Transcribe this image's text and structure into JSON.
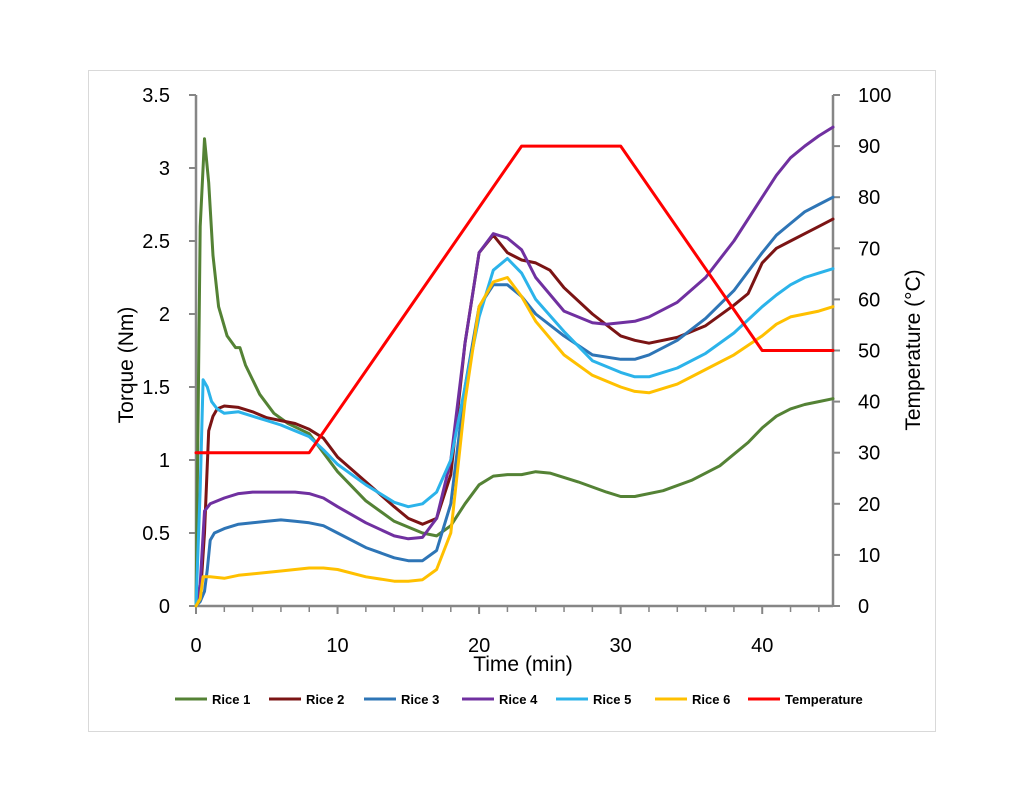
{
  "chart_data": {
    "type": "line",
    "xlabel": "Time (min)",
    "ylabel": "Torque (Nm)",
    "y2label": "Temperature (°C)",
    "xlim": [
      0,
      45
    ],
    "ylim": [
      0,
      3.5
    ],
    "y2lim": [
      0,
      100
    ],
    "xticks": [
      0,
      10,
      20,
      30,
      40
    ],
    "yticks": [
      0,
      0.5,
      1,
      1.5,
      2,
      2.5,
      3,
      3.5
    ],
    "y2ticks": [
      0,
      10,
      20,
      30,
      40,
      50,
      60,
      70,
      80,
      90,
      100
    ],
    "grid": false,
    "legend_position": "bottom",
    "series": [
      {
        "name": "Rice 1",
        "axis": "left",
        "color": "#548235",
        "points": [
          [
            0,
            0
          ],
          [
            0.3,
            2.6
          ],
          [
            0.6,
            3.2
          ],
          [
            0.9,
            2.9
          ],
          [
            1.2,
            2.4
          ],
          [
            1.6,
            2.05
          ],
          [
            2.2,
            1.85
          ],
          [
            2.8,
            1.77
          ],
          [
            3.1,
            1.77
          ],
          [
            3.5,
            1.65
          ],
          [
            4.5,
            1.45
          ],
          [
            5.5,
            1.32
          ],
          [
            6.5,
            1.25
          ],
          [
            8,
            1.18
          ],
          [
            9,
            1.05
          ],
          [
            10,
            0.92
          ],
          [
            12,
            0.72
          ],
          [
            14,
            0.58
          ],
          [
            16,
            0.5
          ],
          [
            17,
            0.48
          ],
          [
            18,
            0.55
          ],
          [
            19,
            0.7
          ],
          [
            20,
            0.83
          ],
          [
            21,
            0.89
          ],
          [
            22,
            0.9
          ],
          [
            23,
            0.9
          ],
          [
            24,
            0.92
          ],
          [
            25,
            0.91
          ],
          [
            27,
            0.85
          ],
          [
            29,
            0.78
          ],
          [
            30,
            0.75
          ],
          [
            31,
            0.75
          ],
          [
            33,
            0.79
          ],
          [
            35,
            0.86
          ],
          [
            37,
            0.96
          ],
          [
            39,
            1.12
          ],
          [
            40,
            1.22
          ],
          [
            41,
            1.3
          ],
          [
            42,
            1.35
          ],
          [
            43,
            1.38
          ],
          [
            44,
            1.4
          ],
          [
            45,
            1.42
          ]
        ]
      },
      {
        "name": "Rice 2",
        "axis": "left",
        "color": "#7b1414",
        "points": [
          [
            0,
            0
          ],
          [
            0.3,
            0.05
          ],
          [
            0.6,
            0.5
          ],
          [
            0.9,
            1.2
          ],
          [
            1.2,
            1.3
          ],
          [
            1.5,
            1.35
          ],
          [
            2,
            1.37
          ],
          [
            3,
            1.36
          ],
          [
            4,
            1.33
          ],
          [
            5,
            1.29
          ],
          [
            6,
            1.27
          ],
          [
            7,
            1.25
          ],
          [
            8,
            1.21
          ],
          [
            9,
            1.15
          ],
          [
            10,
            1.02
          ],
          [
            12,
            0.85
          ],
          [
            14,
            0.68
          ],
          [
            15,
            0.6
          ],
          [
            16,
            0.56
          ],
          [
            17,
            0.6
          ],
          [
            18,
            0.9
          ],
          [
            19,
            1.8
          ],
          [
            20,
            2.42
          ],
          [
            21,
            2.54
          ],
          [
            22,
            2.42
          ],
          [
            23,
            2.37
          ],
          [
            24,
            2.35
          ],
          [
            25,
            2.3
          ],
          [
            26,
            2.18
          ],
          [
            28,
            2.0
          ],
          [
            30,
            1.85
          ],
          [
            31,
            1.82
          ],
          [
            32,
            1.8
          ],
          [
            34,
            1.84
          ],
          [
            36,
            1.92
          ],
          [
            38,
            2.06
          ],
          [
            39,
            2.14
          ],
          [
            40,
            2.35
          ],
          [
            41,
            2.45
          ],
          [
            42,
            2.5
          ],
          [
            43,
            2.55
          ],
          [
            44,
            2.6
          ],
          [
            45,
            2.65
          ]
        ]
      },
      {
        "name": "Rice 3",
        "axis": "left",
        "color": "#2e75b6",
        "points": [
          [
            0,
            0
          ],
          [
            0.3,
            0.03
          ],
          [
            0.6,
            0.1
          ],
          [
            0.8,
            0.25
          ],
          [
            1,
            0.45
          ],
          [
            1.3,
            0.5
          ],
          [
            2,
            0.53
          ],
          [
            3,
            0.56
          ],
          [
            4,
            0.57
          ],
          [
            5,
            0.58
          ],
          [
            6,
            0.59
          ],
          [
            7,
            0.58
          ],
          [
            8,
            0.57
          ],
          [
            9,
            0.55
          ],
          [
            10,
            0.5
          ],
          [
            12,
            0.4
          ],
          [
            14,
            0.33
          ],
          [
            15,
            0.31
          ],
          [
            16,
            0.31
          ],
          [
            17,
            0.38
          ],
          [
            18,
            0.7
          ],
          [
            19,
            1.5
          ],
          [
            20,
            2.05
          ],
          [
            21,
            2.2
          ],
          [
            22,
            2.2
          ],
          [
            23,
            2.12
          ],
          [
            24,
            2.0
          ],
          [
            26,
            1.85
          ],
          [
            28,
            1.72
          ],
          [
            30,
            1.69
          ],
          [
            31,
            1.69
          ],
          [
            32,
            1.72
          ],
          [
            34,
            1.82
          ],
          [
            36,
            1.97
          ],
          [
            38,
            2.16
          ],
          [
            40,
            2.42
          ],
          [
            41,
            2.54
          ],
          [
            42,
            2.62
          ],
          [
            43,
            2.7
          ],
          [
            44,
            2.75
          ],
          [
            45,
            2.8
          ]
        ]
      },
      {
        "name": "Rice 4",
        "axis": "left",
        "color": "#7030a0",
        "points": [
          [
            0,
            0
          ],
          [
            0.3,
            0.15
          ],
          [
            0.6,
            0.65
          ],
          [
            1,
            0.7
          ],
          [
            2,
            0.74
          ],
          [
            3,
            0.77
          ],
          [
            4,
            0.78
          ],
          [
            5,
            0.78
          ],
          [
            6,
            0.78
          ],
          [
            7,
            0.78
          ],
          [
            8,
            0.77
          ],
          [
            9,
            0.74
          ],
          [
            10,
            0.68
          ],
          [
            12,
            0.57
          ],
          [
            14,
            0.48
          ],
          [
            15,
            0.46
          ],
          [
            16,
            0.47
          ],
          [
            17,
            0.6
          ],
          [
            18,
            1.0
          ],
          [
            19,
            1.8
          ],
          [
            20,
            2.42
          ],
          [
            21,
            2.55
          ],
          [
            22,
            2.52
          ],
          [
            23,
            2.44
          ],
          [
            24,
            2.25
          ],
          [
            26,
            2.02
          ],
          [
            28,
            1.94
          ],
          [
            29,
            1.93
          ],
          [
            30,
            1.94
          ],
          [
            31,
            1.95
          ],
          [
            32,
            1.98
          ],
          [
            34,
            2.08
          ],
          [
            36,
            2.25
          ],
          [
            38,
            2.5
          ],
          [
            40,
            2.8
          ],
          [
            41,
            2.95
          ],
          [
            42,
            3.07
          ],
          [
            43,
            3.15
          ],
          [
            44,
            3.22
          ],
          [
            45,
            3.28
          ]
        ]
      },
      {
        "name": "Rice 5",
        "axis": "left",
        "color": "#2bb3ea",
        "points": [
          [
            0,
            0
          ],
          [
            0.3,
            0.8
          ],
          [
            0.5,
            1.55
          ],
          [
            0.8,
            1.5
          ],
          [
            1.1,
            1.4
          ],
          [
            1.5,
            1.35
          ],
          [
            2,
            1.32
          ],
          [
            3,
            1.33
          ],
          [
            4,
            1.3
          ],
          [
            5,
            1.27
          ],
          [
            6,
            1.24
          ],
          [
            7,
            1.2
          ],
          [
            8,
            1.16
          ],
          [
            9,
            1.07
          ],
          [
            10,
            0.97
          ],
          [
            12,
            0.83
          ],
          [
            14,
            0.71
          ],
          [
            15,
            0.68
          ],
          [
            16,
            0.7
          ],
          [
            17,
            0.78
          ],
          [
            18,
            1.0
          ],
          [
            19,
            1.5
          ],
          [
            20,
            1.98
          ],
          [
            21,
            2.3
          ],
          [
            22,
            2.38
          ],
          [
            23,
            2.28
          ],
          [
            24,
            2.1
          ],
          [
            26,
            1.88
          ],
          [
            28,
            1.68
          ],
          [
            30,
            1.6
          ],
          [
            31,
            1.57
          ],
          [
            32,
            1.57
          ],
          [
            34,
            1.63
          ],
          [
            36,
            1.73
          ],
          [
            38,
            1.87
          ],
          [
            40,
            2.05
          ],
          [
            41,
            2.13
          ],
          [
            42,
            2.2
          ],
          [
            43,
            2.25
          ],
          [
            44,
            2.28
          ],
          [
            45,
            2.31
          ]
        ]
      },
      {
        "name": "Rice 6",
        "axis": "left",
        "color": "#ffc000",
        "points": [
          [
            0,
            0
          ],
          [
            0.3,
            0.05
          ],
          [
            0.5,
            0.2
          ],
          [
            1,
            0.2
          ],
          [
            2,
            0.19
          ],
          [
            3,
            0.21
          ],
          [
            4,
            0.22
          ],
          [
            6,
            0.24
          ],
          [
            8,
            0.26
          ],
          [
            9,
            0.26
          ],
          [
            10,
            0.25
          ],
          [
            12,
            0.2
          ],
          [
            14,
            0.17
          ],
          [
            15,
            0.17
          ],
          [
            16,
            0.18
          ],
          [
            17,
            0.25
          ],
          [
            18,
            0.5
          ],
          [
            19,
            1.4
          ],
          [
            20,
            2.05
          ],
          [
            21,
            2.22
          ],
          [
            22,
            2.25
          ],
          [
            23,
            2.12
          ],
          [
            24,
            1.95
          ],
          [
            26,
            1.72
          ],
          [
            28,
            1.58
          ],
          [
            30,
            1.5
          ],
          [
            31,
            1.47
          ],
          [
            32,
            1.46
          ],
          [
            34,
            1.52
          ],
          [
            36,
            1.62
          ],
          [
            38,
            1.72
          ],
          [
            40,
            1.85
          ],
          [
            41,
            1.93
          ],
          [
            42,
            1.98
          ],
          [
            43,
            2.0
          ],
          [
            44,
            2.02
          ],
          [
            45,
            2.05
          ]
        ]
      },
      {
        "name": "Temperature",
        "axis": "right",
        "color": "#ff0000",
        "points": [
          [
            0,
            30
          ],
          [
            8,
            30
          ],
          [
            23,
            90
          ],
          [
            30,
            90
          ],
          [
            40,
            50
          ],
          [
            45,
            50
          ]
        ]
      }
    ]
  }
}
